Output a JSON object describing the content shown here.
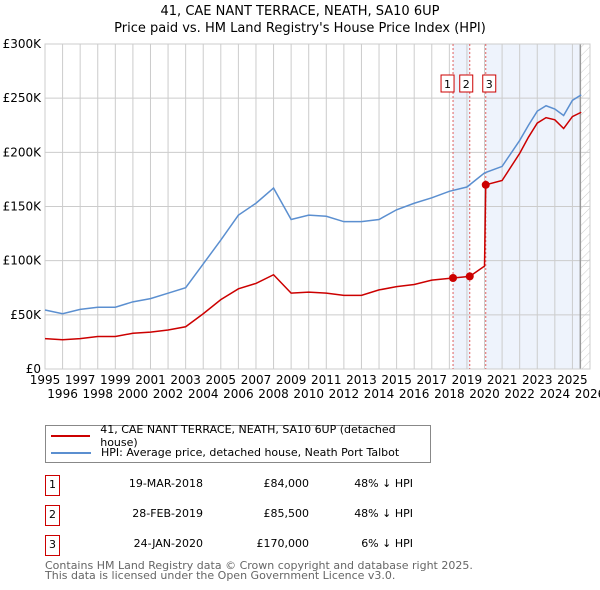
{
  "title_line1": "41, CAE NANT TERRACE, NEATH, SA10 6UP",
  "title_line2": "Price paid vs. HM Land Registry's House Price Index (HPI)",
  "colors": {
    "property": "#cc0000",
    "hpi": "#5b8fd0",
    "shade": "#eef3fc",
    "grid": "#cccccc"
  },
  "chart_data": {
    "type": "line",
    "title": "Price paid vs. HM Land Registry's House Price Index (HPI)",
    "xlim": [
      1995,
      2026
    ],
    "ylim": [
      0,
      300000
    ],
    "x_ticks": [
      "1995",
      "1996",
      "1997",
      "1998",
      "1999",
      "2000",
      "2001",
      "2002",
      "2003",
      "2004",
      "2005",
      "2006",
      "2007",
      "2008",
      "2009",
      "2010",
      "2011",
      "2012",
      "2013",
      "2014",
      "2015",
      "2016",
      "2017",
      "2018",
      "2019",
      "2020",
      "2021",
      "2022",
      "2023",
      "2024",
      "2025",
      "2026"
    ],
    "y_ticks": [
      {
        "v": 0,
        "label": "£0"
      },
      {
        "v": 50000,
        "label": "£50K"
      },
      {
        "v": 100000,
        "label": "£100K"
      },
      {
        "v": 150000,
        "label": "£150K"
      },
      {
        "v": 200000,
        "label": "£200K"
      },
      {
        "v": 250000,
        "label": "£250K"
      },
      {
        "v": 300000,
        "label": "£300K"
      }
    ],
    "series": [
      {
        "name": "41, CAE NANT TERRACE, NEATH, SA10 6UP (detached house)",
        "x": [
          1995,
          1996,
          1997,
          1998,
          1999,
          2000,
          2001,
          2002,
          2003,
          2004,
          2005,
          2006,
          2007,
          2008,
          2009,
          2010,
          2011,
          2012,
          2013,
          2014,
          2015,
          2016,
          2017,
          2018.21,
          2019.16,
          2020.0,
          2020.07,
          2021,
          2022,
          2022.5,
          2023,
          2023.5,
          2024,
          2024.5,
          2025,
          2025.5
        ],
        "y": [
          28000,
          27000,
          28000,
          30000,
          30000,
          33000,
          34000,
          36000,
          39000,
          51000,
          64000,
          74000,
          79000,
          87000,
          70000,
          71000,
          70000,
          68000,
          68000,
          73000,
          76000,
          78000,
          82000,
          84000,
          85500,
          95000,
          170000,
          174000,
          199000,
          214000,
          227000,
          232000,
          230000,
          222000,
          233000,
          237000
        ]
      },
      {
        "name": "HPI: Average price, detached house, Neath Port Talbot",
        "x": [
          1995,
          1996,
          1997,
          1998,
          1999,
          2000,
          2001,
          2002,
          2003,
          2004,
          2005,
          2006,
          2007,
          2008,
          2009,
          2010,
          2011,
          2012,
          2013,
          2014,
          2015,
          2016,
          2017,
          2018,
          2019,
          2020,
          2021,
          2022,
          2022.5,
          2023,
          2023.5,
          2024,
          2024.5,
          2025,
          2025.5
        ],
        "y": [
          54500,
          51000,
          55000,
          57000,
          57000,
          62000,
          65000,
          70000,
          75000,
          97000,
          119000,
          142000,
          153000,
          167000,
          138000,
          142000,
          141000,
          136000,
          136000,
          138000,
          147000,
          153000,
          158000,
          164000,
          168000,
          181000,
          187000,
          211000,
          225000,
          238000,
          243000,
          240000,
          234000,
          248000,
          253000
        ]
      }
    ],
    "sales": [
      {
        "id": "1",
        "x": 2018.21,
        "y": 84000
      },
      {
        "id": "2",
        "x": 2019.16,
        "y": 85500
      },
      {
        "id": "3",
        "x": 2020.07,
        "y": 170000
      }
    ],
    "data_end": 2025.45
  },
  "legend": {
    "property": "41, CAE NANT TERRACE, NEATH, SA10 6UP (detached house)",
    "hpi": "HPI: Average price, detached house, Neath Port Talbot"
  },
  "transactions": [
    {
      "num": "1",
      "date": "19-MAR-2018",
      "price": "£84,000",
      "hpi": "48% ↓ HPI"
    },
    {
      "num": "2",
      "date": "28-FEB-2019",
      "price": "£85,500",
      "hpi": "48% ↓ HPI"
    },
    {
      "num": "3",
      "date": "24-JAN-2020",
      "price": "£170,000",
      "hpi": "6% ↓ HPI"
    }
  ],
  "footer": [
    "Contains HM Land Registry data © Crown copyright and database right 2025.",
    "This data is licensed under the Open Government Licence v3.0."
  ]
}
